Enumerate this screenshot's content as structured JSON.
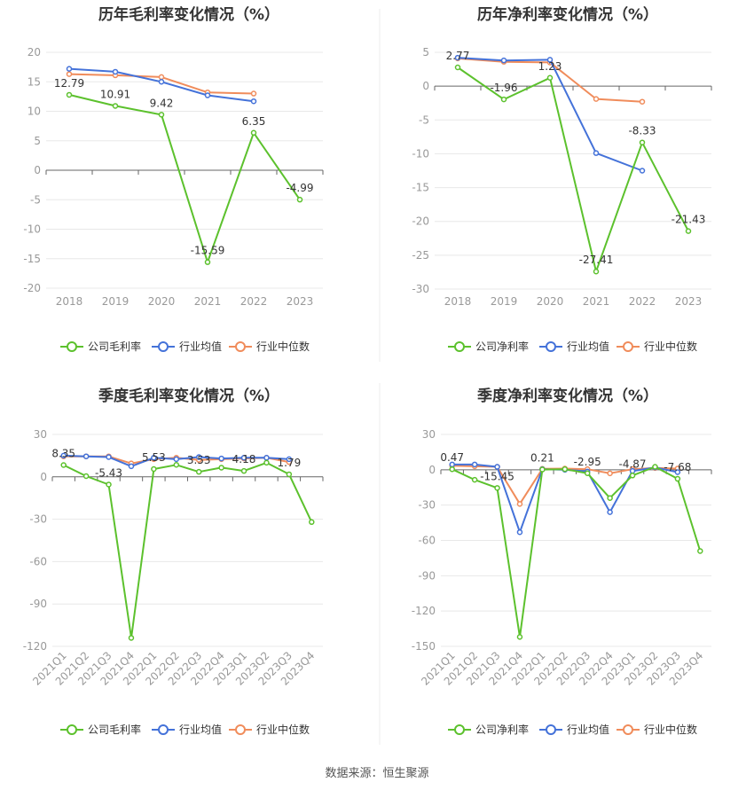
{
  "source_text": "数据来源：恒生聚源",
  "colors": {
    "company": "#5cc12d",
    "avg": "#4472d9",
    "median": "#f08c5b",
    "axis_text": "#999999",
    "label_text": "#333333",
    "grid": "#e8e8e8",
    "zero": "#666666",
    "divider": "#eeeeee"
  },
  "chart_data": [
    {
      "type": "line",
      "title": "历年毛利率变化情况（%）",
      "xlabel": "",
      "ylabel": "",
      "categories": [
        "2018",
        "2019",
        "2020",
        "2021",
        "2022",
        "2023"
      ],
      "ylim": [
        -20,
        20
      ],
      "yticks": [
        20,
        15,
        10,
        5,
        0,
        -5,
        -10,
        -15,
        -20
      ],
      "series": [
        {
          "name": "公司毛利率",
          "role": "company",
          "values": [
            12.79,
            10.91,
            9.42,
            -15.59,
            6.35,
            -4.99
          ]
        },
        {
          "name": "行业均值",
          "role": "avg",
          "values": [
            17.2,
            16.7,
            15.0,
            12.7,
            11.7,
            null
          ]
        },
        {
          "name": "行业中位数",
          "role": "median",
          "values": [
            16.3,
            16.1,
            15.8,
            13.2,
            13.0,
            null
          ]
        }
      ],
      "data_labels": [
        "12.79",
        "10.91",
        "9.42",
        "-15.59",
        "6.35",
        "-4.99"
      ],
      "legend": [
        "公司毛利率",
        "行业均值",
        "行业中位数"
      ],
      "legend_position": "bottom"
    },
    {
      "type": "line",
      "title": "历年净利率变化情况（%）",
      "xlabel": "",
      "ylabel": "",
      "categories": [
        "2018",
        "2019",
        "2020",
        "2021",
        "2022",
        "2023"
      ],
      "ylim": [
        -30,
        5
      ],
      "yticks": [
        5,
        0,
        -5,
        -10,
        -15,
        -20,
        -25,
        -30
      ],
      "series": [
        {
          "name": "公司净利率",
          "role": "company",
          "values": [
            2.77,
            -1.96,
            1.23,
            -27.41,
            -8.33,
            -21.43
          ]
        },
        {
          "name": "行业均值",
          "role": "avg",
          "values": [
            4.2,
            3.8,
            3.9,
            -9.9,
            -12.5,
            null
          ]
        },
        {
          "name": "行业中位数",
          "role": "median",
          "values": [
            4.1,
            3.6,
            3.5,
            -1.9,
            -2.3,
            null
          ]
        }
      ],
      "data_labels": [
        "2.77",
        "-1.96",
        "1.23",
        "-27.41",
        "-8.33",
        "-21.43"
      ],
      "legend": [
        "公司净利率",
        "行业均值",
        "行业中位数"
      ],
      "legend_position": "bottom"
    },
    {
      "type": "line",
      "title": "季度毛利率变化情况（%）",
      "xlabel": "",
      "ylabel": "",
      "categories": [
        "2021Q1",
        "2021Q2",
        "2021Q3",
        "2021Q4",
        "2022Q1",
        "2022Q2",
        "2022Q3",
        "2022Q4",
        "2023Q1",
        "2023Q2",
        "2023Q3",
        "2023Q4"
      ],
      "ylim": [
        -120,
        30
      ],
      "yticks": [
        30,
        0,
        -30,
        -60,
        -90,
        -120
      ],
      "series": [
        {
          "name": "公司毛利率",
          "role": "company",
          "values": [
            8.35,
            0.5,
            -5.43,
            -114.0,
            5.53,
            8.5,
            3.53,
            6.5,
            4.18,
            10.0,
            1.79,
            -32.0
          ]
        },
        {
          "name": "行业均值",
          "role": "avg",
          "values": [
            15.0,
            14.5,
            14.0,
            7.5,
            13.5,
            12.5,
            14.0,
            13.0,
            13.5,
            13.5,
            12.5,
            null
          ]
        },
        {
          "name": "行业中位数",
          "role": "median",
          "values": [
            14.5,
            14.5,
            14.5,
            9.5,
            12.5,
            13.5,
            12.0,
            12.5,
            13.0,
            13.5,
            10.5,
            null
          ]
        }
      ],
      "data_labels": [
        {
          "index": 0,
          "text": "8.35"
        },
        {
          "index": 2,
          "text": "-5.43"
        },
        {
          "index": 4,
          "text": "5.53"
        },
        {
          "index": 6,
          "text": "3.53"
        },
        {
          "index": 8,
          "text": "4.18"
        },
        {
          "index": 10,
          "text": "1.79"
        }
      ],
      "legend": [
        "公司毛利率",
        "行业均值",
        "行业中位数"
      ],
      "legend_position": "bottom"
    },
    {
      "type": "line",
      "title": "季度净利率变化情况（%）",
      "xlabel": "",
      "ylabel": "",
      "categories": [
        "2021Q1",
        "2021Q2",
        "2021Q3",
        "2021Q4",
        "2022Q1",
        "2022Q2",
        "2022Q3",
        "2022Q4",
        "2023Q1",
        "2023Q2",
        "2023Q3",
        "2023Q4"
      ],
      "ylim": [
        -150,
        30
      ],
      "yticks": [
        30,
        0,
        -30,
        -60,
        -90,
        -120,
        -150
      ],
      "series": [
        {
          "name": "公司净利率",
          "role": "company",
          "values": [
            0.47,
            -8.5,
            -15.45,
            -142.0,
            0.21,
            0.5,
            -2.95,
            -24.0,
            -4.87,
            2.5,
            -7.68,
            -69.0
          ]
        },
        {
          "name": "行业均值",
          "role": "avg",
          "values": [
            4.5,
            4.5,
            2.5,
            -53.0,
            0.5,
            0.0,
            -1.5,
            -36.0,
            -1.0,
            2.0,
            -2.0,
            null
          ]
        },
        {
          "name": "行业中位数",
          "role": "median",
          "values": [
            3.5,
            3.0,
            2.5,
            -29.0,
            0.8,
            1.0,
            0.5,
            -3.0,
            0.5,
            1.5,
            1.0,
            null
          ]
        }
      ],
      "data_labels": [
        {
          "index": 0,
          "text": "0.47"
        },
        {
          "index": 2,
          "text": "-15.45"
        },
        {
          "index": 4,
          "text": "0.21"
        },
        {
          "index": 6,
          "text": "-2.95"
        },
        {
          "index": 8,
          "text": "-4.87"
        },
        {
          "index": 10,
          "text": "-7.68"
        }
      ],
      "legend": [
        "公司净利率",
        "行业均值",
        "行业中位数"
      ],
      "legend_position": "bottom"
    }
  ]
}
